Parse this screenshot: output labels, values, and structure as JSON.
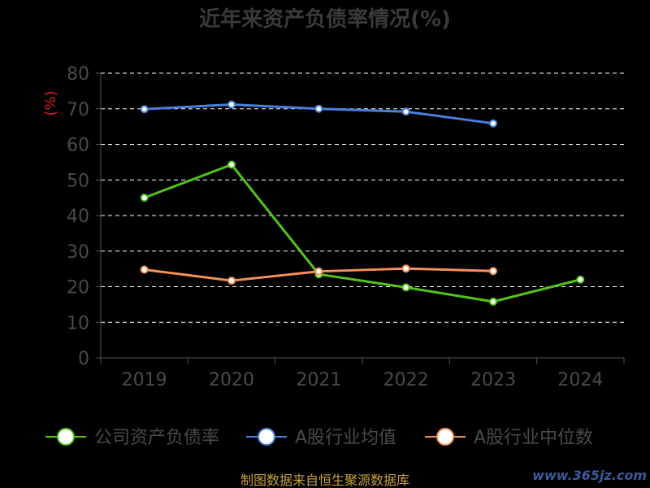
{
  "chart_data": {
    "type": "line",
    "title": "近年来资产负债率情况(%)",
    "ylabel": "(%)",
    "categories": [
      "2019",
      "2020",
      "2021",
      "2022",
      "2023",
      "2024"
    ],
    "ylim": [
      0,
      80
    ],
    "yticks": [
      0,
      10,
      20,
      30,
      40,
      50,
      60,
      70,
      80
    ],
    "grid": true,
    "legend_position": "bottom",
    "series": [
      {
        "name": "公司资产负债率",
        "color": "#52c41a",
        "values": [
          45.0,
          54.3,
          23.5,
          19.8,
          15.8,
          22.0
        ]
      },
      {
        "name": "A股行业均值",
        "color": "#4a7fdc",
        "values": [
          69.9,
          71.2,
          70.0,
          69.2,
          65.9,
          null
        ]
      },
      {
        "name": "A股行业中位数",
        "color": "#f4915a",
        "values": [
          24.8,
          21.7,
          24.3,
          25.1,
          24.4,
          null
        ]
      }
    ]
  },
  "footer": {
    "source": "制图数据来自恒生聚源数据库",
    "watermark": "www.365jz.com"
  }
}
